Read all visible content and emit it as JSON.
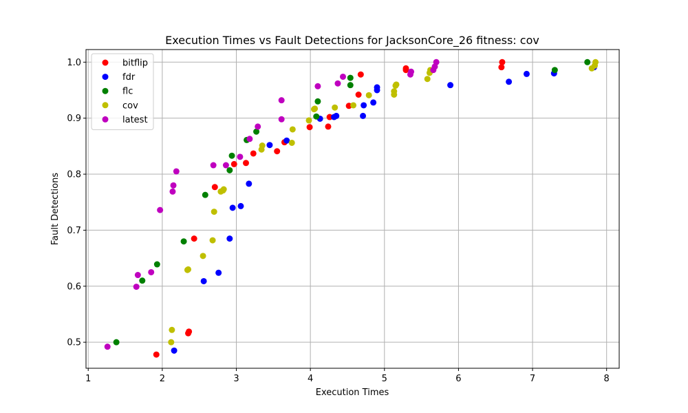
{
  "chart_data": {
    "type": "scatter",
    "title": "Execution Times vs Fault Detections for JacksonCore_26 fitness: cov",
    "xlabel": "Execution Times",
    "ylabel": "Fault Detections",
    "xlim": [
      0.97,
      8.17
    ],
    "ylim": [
      0.4535,
      1.0225
    ],
    "xticks": [
      "1",
      "2",
      "3",
      "4",
      "5",
      "6",
      "7",
      "8"
    ],
    "yticks": [
      "0.5",
      "0.6",
      "0.7",
      "0.8",
      "0.9",
      "1.0"
    ],
    "grid": true,
    "legend": "top-left",
    "series": [
      {
        "name": "bitflip",
        "color": "#ff0000",
        "points": [
          [
            1.92,
            0.478
          ],
          [
            2.35,
            0.516
          ],
          [
            2.36,
            0.519
          ],
          [
            2.43,
            0.685
          ],
          [
            2.71,
            0.777
          ],
          [
            2.97,
            0.818
          ],
          [
            3.13,
            0.82
          ],
          [
            3.23,
            0.837
          ],
          [
            3.55,
            0.841
          ],
          [
            3.65,
            0.857
          ],
          [
            3.99,
            0.884
          ],
          [
            4.24,
            0.885
          ],
          [
            4.26,
            0.902
          ],
          [
            4.52,
            0.922
          ],
          [
            4.65,
            0.942
          ],
          [
            4.68,
            0.978
          ],
          [
            5.29,
            0.986
          ],
          [
            5.29,
            0.989
          ],
          [
            6.58,
            0.991
          ],
          [
            6.59,
            1.0
          ]
        ]
      },
      {
        "name": "fdr",
        "color": "#0000ff",
        "points": [
          [
            2.16,
            0.485
          ],
          [
            2.56,
            0.609
          ],
          [
            2.76,
            0.624
          ],
          [
            2.91,
            0.685
          ],
          [
            2.95,
            0.74
          ],
          [
            3.06,
            0.743
          ],
          [
            3.17,
            0.783
          ],
          [
            3.45,
            0.852
          ],
          [
            3.68,
            0.86
          ],
          [
            4.13,
            0.899
          ],
          [
            4.32,
            0.902
          ],
          [
            4.35,
            0.904
          ],
          [
            4.71,
            0.904
          ],
          [
            4.72,
            0.923
          ],
          [
            4.85,
            0.928
          ],
          [
            4.9,
            0.95
          ],
          [
            4.9,
            0.955
          ],
          [
            5.89,
            0.959
          ],
          [
            6.68,
            0.965
          ],
          [
            6.92,
            0.979
          ],
          [
            7.29,
            0.98
          ],
          [
            7.83,
            0.991
          ]
        ]
      },
      {
        "name": "flc",
        "color": "#008000",
        "points": [
          [
            1.38,
            0.5
          ],
          [
            1.73,
            0.61
          ],
          [
            1.93,
            0.639
          ],
          [
            2.29,
            0.68
          ],
          [
            2.58,
            0.763
          ],
          [
            2.91,
            0.807
          ],
          [
            2.94,
            0.833
          ],
          [
            3.14,
            0.861
          ],
          [
            3.27,
            0.876
          ],
          [
            4.08,
            0.903
          ],
          [
            4.1,
            0.93
          ],
          [
            4.54,
            0.959
          ],
          [
            4.54,
            0.972
          ],
          [
            7.3,
            0.986
          ],
          [
            7.74,
            1.0
          ]
        ]
      },
      {
        "name": "cov",
        "color": "#bfbf00",
        "points": [
          [
            2.12,
            0.5
          ],
          [
            2.13,
            0.522
          ],
          [
            2.34,
            0.629
          ],
          [
            2.35,
            0.63
          ],
          [
            2.55,
            0.654
          ],
          [
            2.68,
            0.682
          ],
          [
            2.7,
            0.733
          ],
          [
            2.79,
            0.769
          ],
          [
            2.82,
            0.771
          ],
          [
            2.83,
            0.773
          ],
          [
            3.34,
            0.844
          ],
          [
            3.35,
            0.851
          ],
          [
            3.75,
            0.856
          ],
          [
            3.76,
            0.88
          ],
          [
            3.98,
            0.896
          ],
          [
            4.05,
            0.916
          ],
          [
            4.06,
            0.917
          ],
          [
            4.33,
            0.919
          ],
          [
            4.58,
            0.923
          ],
          [
            4.79,
            0.941
          ],
          [
            5.13,
            0.942
          ],
          [
            5.13,
            0.948
          ],
          [
            5.15,
            0.958
          ],
          [
            5.16,
            0.96
          ],
          [
            5.58,
            0.97
          ],
          [
            5.61,
            0.981
          ],
          [
            5.62,
            0.986
          ],
          [
            7.8,
            0.989
          ],
          [
            7.84,
            0.994
          ],
          [
            7.85,
            1.0
          ]
        ]
      },
      {
        "name": "latest",
        "color": "#bf00bf",
        "points": [
          [
            1.26,
            0.492
          ],
          [
            1.65,
            0.599
          ],
          [
            1.67,
            0.62
          ],
          [
            1.85,
            0.625
          ],
          [
            1.97,
            0.736
          ],
          [
            2.14,
            0.769
          ],
          [
            2.15,
            0.78
          ],
          [
            2.19,
            0.805
          ],
          [
            2.69,
            0.816
          ],
          [
            2.86,
            0.816
          ],
          [
            3.05,
            0.831
          ],
          [
            3.18,
            0.863
          ],
          [
            3.29,
            0.885
          ],
          [
            3.61,
            0.898
          ],
          [
            3.61,
            0.932
          ],
          [
            4.1,
            0.957
          ],
          [
            4.37,
            0.962
          ],
          [
            4.44,
            0.974
          ],
          [
            5.35,
            0.978
          ],
          [
            5.36,
            0.983
          ],
          [
            5.66,
            0.986
          ],
          [
            5.68,
            0.992
          ],
          [
            5.7,
            1.0
          ]
        ]
      }
    ]
  }
}
